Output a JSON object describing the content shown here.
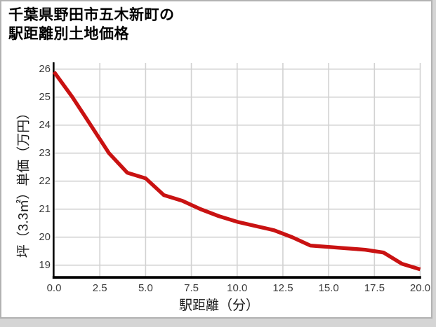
{
  "title": {
    "line1": "千葉県野田市五木新町の",
    "line2": "駅距離別土地価格"
  },
  "chart_data": {
    "type": "line",
    "title": "千葉県野田市五木新町の駅距離別土地価格",
    "xlabel": "駅距離（分）",
    "ylabel": "坪（3.3㎡）単価（万円）",
    "x": [
      0,
      1,
      2,
      3,
      4,
      5,
      6,
      7,
      8,
      9,
      10,
      11,
      12,
      13,
      14,
      15,
      16,
      17,
      18,
      19,
      20
    ],
    "y": [
      25.9,
      25.0,
      24.0,
      23.0,
      22.3,
      22.1,
      21.5,
      21.3,
      21.0,
      20.75,
      20.55,
      20.4,
      20.25,
      20.0,
      19.7,
      19.65,
      19.6,
      19.55,
      19.45,
      19.05,
      18.85
    ],
    "xticks": [
      0,
      2.5,
      5,
      7.5,
      10,
      12.5,
      15,
      17.5,
      20
    ],
    "xtick_labels": [
      "0.0",
      "2.5",
      "5.0",
      "7.5",
      "10.0",
      "12.5",
      "15.0",
      "17.5",
      "20.0"
    ],
    "yticks": [
      26,
      25,
      24,
      23,
      22,
      21,
      20,
      19
    ],
    "ytick_labels": [
      "26",
      "25",
      "24",
      "23",
      "22",
      "21",
      "20",
      "19"
    ],
    "xlim": [
      0,
      20
    ],
    "ylim": [
      18.6,
      26.2
    ],
    "grid": true,
    "legend": false,
    "line_color": "#c91212",
    "grid_color": "#d2d2d2",
    "axis_color": "#000000"
  }
}
